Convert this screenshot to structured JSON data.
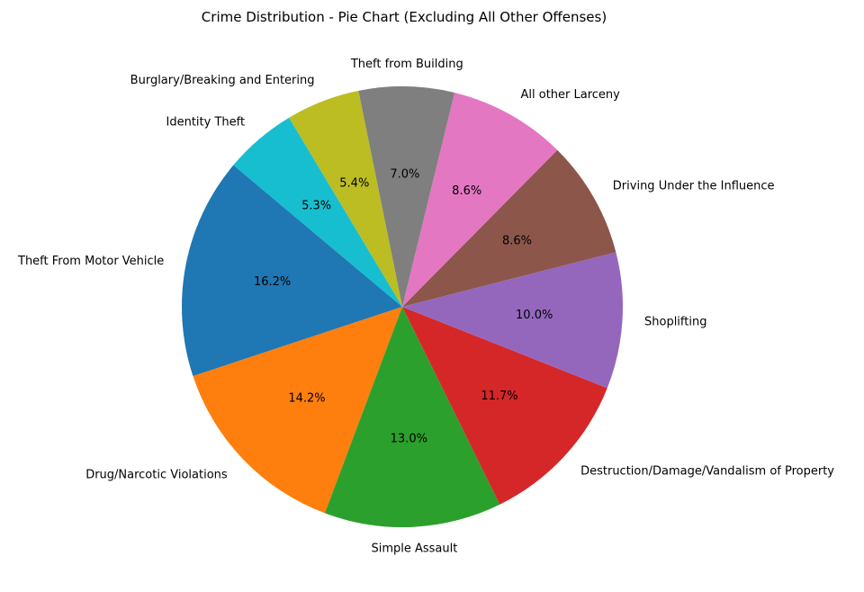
{
  "chart_data": {
    "type": "pie",
    "title": "Crime Distribution - Pie Chart (Excluding All Other Offenses)",
    "start_angle_deg": 140,
    "direction": "counterclockwise",
    "slices": [
      {
        "label": "Theft From Motor Vehicle",
        "value": 16.2,
        "pct_label": "16.2%",
        "color": "#1f77b4"
      },
      {
        "label": "Drug/Narcotic Violations",
        "value": 14.2,
        "pct_label": "14.2%",
        "color": "#ff7f0e"
      },
      {
        "label": "Simple Assault",
        "value": 13.0,
        "pct_label": "13.0%",
        "color": "#2ca02c"
      },
      {
        "label": "Destruction/Damage/Vandalism of Property",
        "value": 11.7,
        "pct_label": "11.7%",
        "color": "#d62728"
      },
      {
        "label": "Shoplifting",
        "value": 10.0,
        "pct_label": "10.0%",
        "color": "#9467bd"
      },
      {
        "label": "Driving Under the Influence",
        "value": 8.6,
        "pct_label": "8.6%",
        "color": "#8c564b"
      },
      {
        "label": "All other Larceny",
        "value": 8.6,
        "pct_label": "8.6%",
        "color": "#e377c2"
      },
      {
        "label": "Theft from Building",
        "value": 7.0,
        "pct_label": "7.0%",
        "color": "#7f7f7f"
      },
      {
        "label": "Burglary/Breaking and Entering",
        "value": 5.4,
        "pct_label": "5.4%",
        "color": "#bcbd22"
      },
      {
        "label": "Identity Theft",
        "value": 5.3,
        "pct_label": "5.3%",
        "color": "#17becf"
      }
    ]
  }
}
